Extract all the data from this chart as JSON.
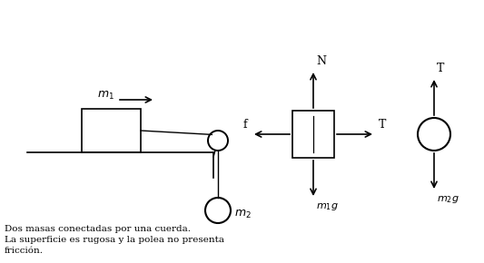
{
  "bg_color": "#ffffff",
  "text_color": "#000000",
  "line_color": "#000000",
  "fig_width": 5.33,
  "fig_height": 2.9,
  "dpi": 100,
  "caption_lines": [
    "Dos masas conectadas por una cuerda.",
    "La superficie es rugosa y la polea no presenta",
    "fricción."
  ]
}
